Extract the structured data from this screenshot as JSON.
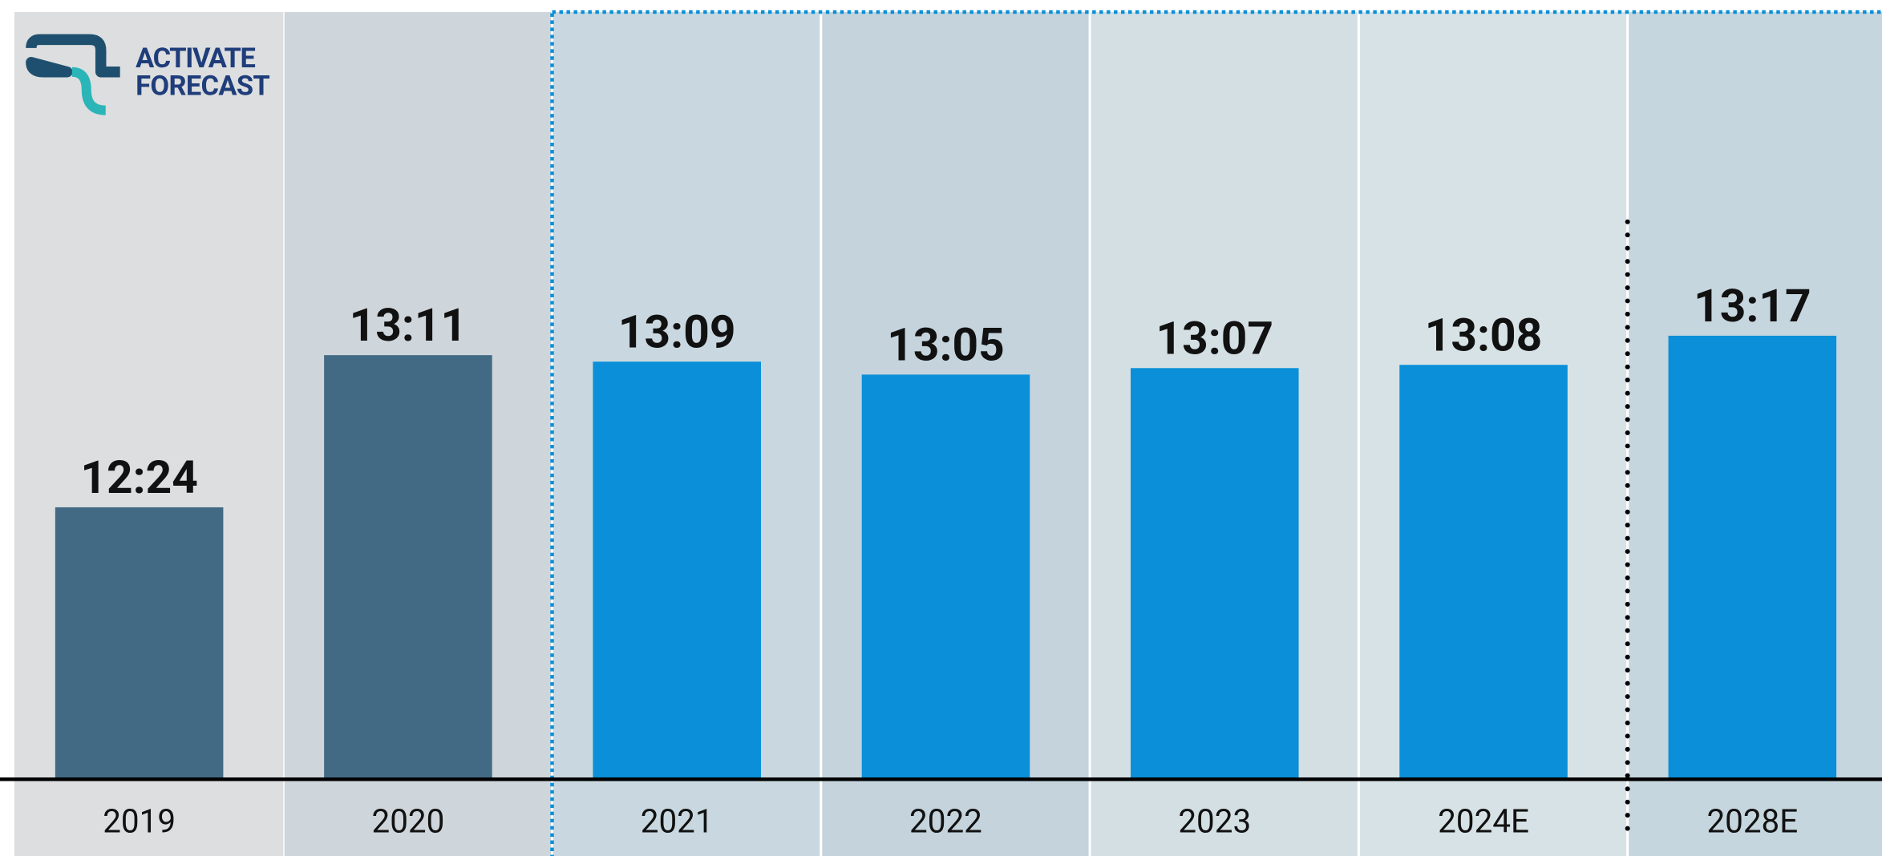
{
  "logo": {
    "line1": "ACTIVATE",
    "line2": "FORECAST"
  },
  "chart_data": {
    "type": "bar",
    "categories": [
      "2019",
      "2020",
      "2021",
      "2022",
      "2023",
      "2024E",
      "2028E"
    ],
    "values": [
      744,
      791,
      789,
      785,
      787,
      788,
      797
    ],
    "value_labels": [
      "12:24",
      "13:11",
      "13:09",
      "13:05",
      "13:07",
      "13:08",
      "13:17"
    ],
    "colors": [
      "#436a85",
      "#436a85",
      "#0a8fd8",
      "#0a8fd8",
      "#0a8fd8",
      "#0a8fd8",
      "#0a8fd8"
    ],
    "ylim": [
      660,
      897
    ]
  }
}
